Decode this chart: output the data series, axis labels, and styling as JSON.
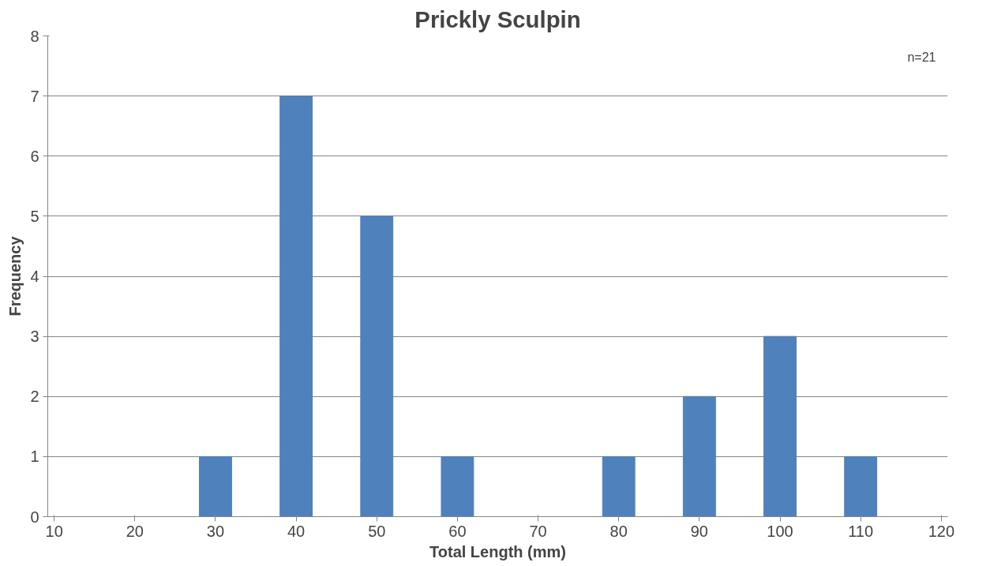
{
  "chart_data": {
    "type": "bar",
    "title": "Prickly Sculpin",
    "xlabel": "Total Length (mm)",
    "ylabel": "Frequency",
    "categories": [
      "10",
      "20",
      "30",
      "40",
      "50",
      "60",
      "70",
      "80",
      "90",
      "100",
      "110",
      "120"
    ],
    "values": [
      0,
      0,
      1,
      7,
      5,
      1,
      0,
      1,
      2,
      3,
      1,
      0
    ],
    "color": "#4f81bd",
    "ylim": [
      0,
      8
    ],
    "yticks": [
      0,
      1,
      2,
      3,
      4,
      5,
      6,
      7,
      8
    ],
    "grid": "y",
    "annotations": [
      "n=21"
    ]
  }
}
